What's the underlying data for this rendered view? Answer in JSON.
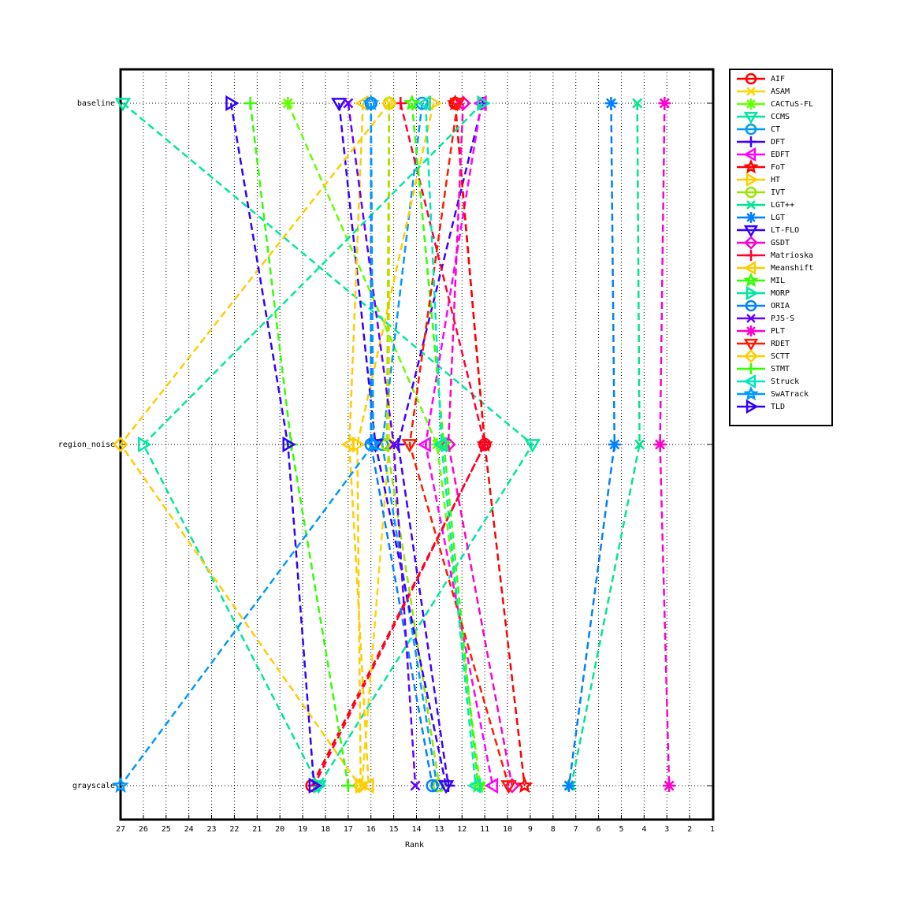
{
  "chart_data": {
    "type": "rank-line",
    "xlabel": "Rank",
    "categories": [
      "baseline",
      "region_noise",
      "grayscale"
    ],
    "xlim": [
      27,
      1
    ],
    "xticks": [
      27,
      26,
      25,
      24,
      23,
      22,
      21,
      20,
      19,
      18,
      17,
      16,
      15,
      14,
      13,
      12,
      11,
      10,
      9,
      8,
      7,
      6,
      5,
      4,
      3,
      2,
      1
    ],
    "grid": true,
    "legend": "outside-top-right",
    "series": [
      {
        "name": "AIF",
        "color": "#ff0000",
        "marker": "circle",
        "values": [
          12.3,
          11.0,
          18.6
        ]
      },
      {
        "name": "ASAM",
        "color": "#ffd700",
        "marker": "x",
        "values": [
          15.2,
          15.2,
          16.4
        ]
      },
      {
        "name": "CACTuS-FL",
        "color": "#66ff00",
        "marker": "asterisk",
        "values": [
          19.65,
          13.1,
          11.2
        ]
      },
      {
        "name": "CCMS",
        "color": "#00e6a0",
        "marker": "triangle-down",
        "values": [
          26.9,
          8.9,
          18.3
        ]
      },
      {
        "name": "CT",
        "color": "#0099ff",
        "marker": "circle",
        "values": [
          13.75,
          15.5,
          13.1
        ]
      },
      {
        "name": "DFT",
        "color": "#4000ff",
        "marker": "plus",
        "values": [
          11.1,
          14.8,
          12.6
        ]
      },
      {
        "name": "EDFT",
        "color": "#ff00ff",
        "marker": "triangle-left",
        "values": [
          11.15,
          13.6,
          10.65
        ]
      },
      {
        "name": "FoT",
        "color": "#ff0000",
        "marker": "pentagram",
        "values": [
          12.3,
          11.0,
          9.25
        ]
      },
      {
        "name": "HT",
        "color": "#ffcc00",
        "marker": "triangle-right",
        "values": [
          13.25,
          16.6,
          16.45
        ]
      },
      {
        "name": "IVT",
        "color": "#99e600",
        "marker": "circle",
        "values": [
          15.2,
          15.3,
          13.0
        ]
      },
      {
        "name": "LGT++",
        "color": "#00e68c",
        "marker": "x",
        "values": [
          4.3,
          4.2,
          7.2
        ]
      },
      {
        "name": "LGT",
        "color": "#0080ff",
        "marker": "asterisk",
        "values": [
          5.45,
          5.3,
          7.3
        ]
      },
      {
        "name": "LT-FLO",
        "color": "#3300ff",
        "marker": "triangle-down",
        "values": [
          17.4,
          15.8,
          12.7
        ]
      },
      {
        "name": "GSDT",
        "color": "#ff00cc",
        "marker": "diamond",
        "values": [
          11.95,
          12.6,
          9.8
        ]
      },
      {
        "name": "Matrioska",
        "color": "#ff0033",
        "marker": "plus",
        "values": [
          14.7,
          11.0,
          18.5
        ]
      },
      {
        "name": "Meanshift",
        "color": "#ffcc00",
        "marker": "triangle-left",
        "values": [
          16.35,
          16.95,
          16.1
        ]
      },
      {
        "name": "MIL",
        "color": "#33ff00",
        "marker": "pentagram",
        "values": [
          14.2,
          12.8,
          11.3
        ]
      },
      {
        "name": "MORP",
        "color": "#00e6a0",
        "marker": "triangle-right",
        "values": [
          11.1,
          26.0,
          18.3
        ]
      },
      {
        "name": "ORIA",
        "color": "#0080ff",
        "marker": "circle",
        "values": [
          16.0,
          16.0,
          13.3
        ]
      },
      {
        "name": "PJS-S",
        "color": "#6600ff",
        "marker": "x",
        "values": [
          17.0,
          15.0,
          14.05
        ]
      },
      {
        "name": "PLT",
        "color": "#ff00cc",
        "marker": "asterisk",
        "values": [
          3.1,
          3.3,
          2.9
        ]
      },
      {
        "name": "RDET",
        "color": "#ff1a00",
        "marker": "triangle-down",
        "values": [
          12.2,
          14.3,
          9.95
        ]
      },
      {
        "name": "SCTT",
        "color": "#ffcc00",
        "marker": "diamond",
        "values": [
          15.2,
          27,
          16.5
        ]
      },
      {
        "name": "STMT",
        "color": "#33ff00",
        "marker": "plus",
        "values": [
          21.3,
          19.5,
          17.0
        ]
      },
      {
        "name": "Struck",
        "color": "#00e6c0",
        "marker": "triangle-left",
        "values": [
          13.6,
          12.9,
          11.4
        ]
      },
      {
        "name": "SwATrack",
        "color": "#0099ff",
        "marker": "pentagram",
        "values": [
          16.0,
          15.9,
          27
        ]
      },
      {
        "name": "TLD",
        "color": "#3300ff",
        "marker": "triangle-right",
        "values": [
          22.15,
          19.65,
          18.5
        ]
      }
    ]
  }
}
